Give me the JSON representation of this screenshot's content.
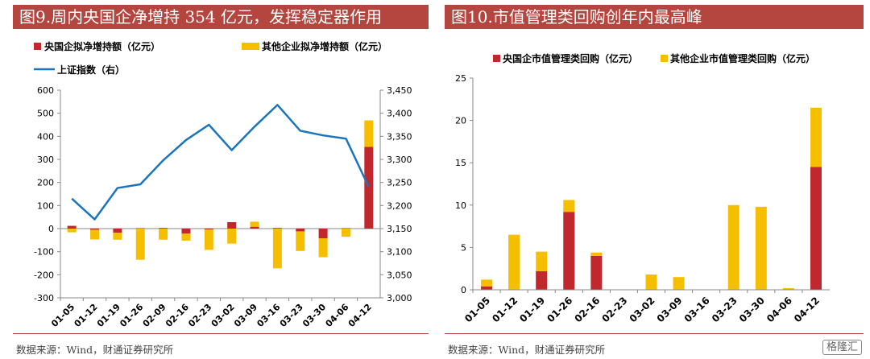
{
  "panels": {
    "left_title": "图9.周内央国企净增持 354 亿元，发挥稳定器作用",
    "right_title": "图10.市值管理类回购创年内最高峰",
    "left_source": "数据来源：Wind，财通证券研究所",
    "right_source": "数据来源：Wind，财通证券研究所"
  },
  "watermark": "格隆汇",
  "chart_data": [
    {
      "type": "bar",
      "stacked": true,
      "categories": [
        "01-05",
        "01-12",
        "01-19",
        "01-26",
        "02-09",
        "02-16",
        "02-23",
        "03-02",
        "03-09",
        "03-16",
        "03-23",
        "03-30",
        "04-06",
        "04-12"
      ],
      "series": [
        {
          "name": "央国企拟净增持额（亿元）",
          "color": "#c0282d",
          "values": [
            12,
            -5,
            -18,
            2,
            3,
            -22,
            -4,
            28,
            8,
            3,
            -12,
            -42,
            2,
            354
          ]
        },
        {
          "name": "其他企业拟净增持额（亿元）",
          "color": "#f5bf00",
          "values": [
            -16,
            -42,
            -30,
            -135,
            -48,
            -30,
            -88,
            -65,
            22,
            -172,
            -85,
            -82,
            -35,
            115
          ]
        }
      ],
      "line": {
        "name": "上证指数（右）",
        "color": "#1a75bc",
        "values": [
          3215,
          3170,
          3238,
          3246,
          3298,
          3342,
          3375,
          3320,
          3371,
          3418,
          3362,
          3352,
          3345,
          3240
        ]
      },
      "ylim": [
        -300,
        600
      ],
      "yticks": [
        -300,
        -200,
        -100,
        0,
        100,
        200,
        300,
        400,
        500,
        600
      ],
      "y2lim": [
        3000,
        3450
      ],
      "y2ticks": [
        "3,000",
        "3,050",
        "3,100",
        "3,150",
        "3,200",
        "3,250",
        "3,300",
        "3,350",
        "3,400",
        "3,450"
      ],
      "legend": "top",
      "grid": false
    },
    {
      "type": "bar",
      "stacked": true,
      "categories": [
        "01-05",
        "01-12",
        "01-19",
        "01-26",
        "02-16",
        "02-23",
        "03-02",
        "03-09",
        "03-16",
        "03-23",
        "03-30",
        "04-06",
        "04-12"
      ],
      "series": [
        {
          "name": "央国企市值管理类回购（亿元）",
          "color": "#c0282d",
          "values": [
            0.4,
            0,
            2.2,
            9.2,
            4.0,
            0,
            0,
            0,
            0,
            0,
            0,
            0,
            14.5
          ]
        },
        {
          "name": "其他企业市值管理类回购（亿元）",
          "color": "#f5bf00",
          "values": [
            0.8,
            6.5,
            2.3,
            1.4,
            0.4,
            0,
            1.8,
            1.5,
            0,
            10.0,
            9.8,
            0.2,
            7.0
          ]
        }
      ],
      "ylim": [
        0,
        25
      ],
      "yticks": [
        0,
        5,
        10,
        15,
        20,
        25
      ],
      "legend": "top",
      "grid": false
    }
  ]
}
